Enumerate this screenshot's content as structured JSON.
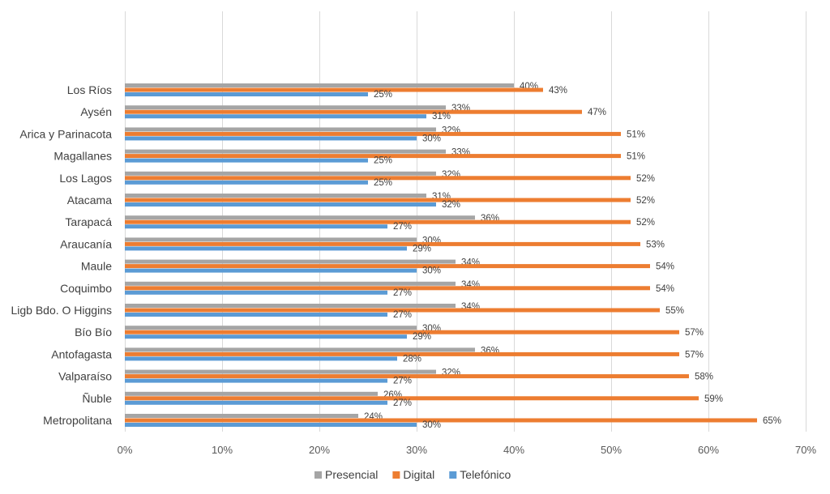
{
  "chart_data": {
    "type": "bar",
    "orientation": "horizontal",
    "categories": [
      "Los Ríos",
      "Aysén",
      "Arica y Parinacota",
      "Magallanes",
      "Los Lagos",
      "Atacama",
      "Tarapacá",
      "Araucanía",
      "Maule",
      "Coquimbo",
      "Ligb Bdo. O Higgins",
      "Bío Bío",
      "Antofagasta",
      "Valparaíso",
      "Ñuble",
      "Metropolitana"
    ],
    "series": [
      {
        "name": "Presencial",
        "color": "#a5a5a5",
        "values": [
          40,
          33,
          32,
          33,
          32,
          31,
          36,
          30,
          34,
          34,
          34,
          30,
          36,
          32,
          26,
          24
        ]
      },
      {
        "name": "Digital",
        "color": "#ed7d31",
        "values": [
          43,
          47,
          51,
          51,
          52,
          52,
          52,
          53,
          54,
          54,
          55,
          57,
          57,
          58,
          59,
          65
        ]
      },
      {
        "name": "Telefónico",
        "color": "#5b9bd5",
        "values": [
          25,
          31,
          30,
          25,
          25,
          32,
          27,
          29,
          30,
          27,
          27,
          29,
          28,
          27,
          27,
          30
        ]
      }
    ],
    "xlim": [
      0,
      70
    ],
    "x_ticks": [
      "0%",
      "10%",
      "20%",
      "30%",
      "40%",
      "50%",
      "60%",
      "70%"
    ],
    "value_suffix": "%",
    "grid": "vertical",
    "legend_position": "bottom",
    "title": "",
    "xlabel": "",
    "ylabel": ""
  }
}
